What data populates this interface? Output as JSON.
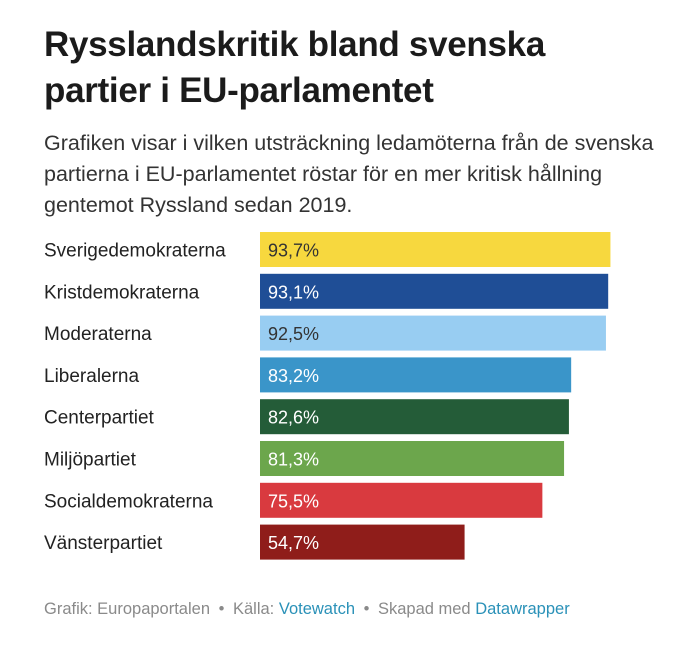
{
  "title": "Rysslandskritik bland svenska partier i EU-parlamentet",
  "subtitle": "Grafiken visar i vilken utsträckning ledamöterna från de svenska partierna i EU-parlamentet röstar för en mer kritisk hållning gentemot Ryssland sedan 2019.",
  "chart_data": {
    "type": "bar",
    "orientation": "horizontal",
    "title": "Rysslandskritik bland svenska partier i EU-parlamentet",
    "xlim": [
      0,
      100
    ],
    "categories": [
      "Sverigedemokraterna",
      "Kristdemokraterna",
      "Moderaterna",
      "Liberalerna",
      "Centerpartiet",
      "Miljöpartiet",
      "Socialdemokraterna",
      "Vänsterpartiet"
    ],
    "values": [
      93.7,
      93.1,
      92.5,
      83.2,
      82.6,
      81.3,
      75.5,
      54.7
    ],
    "value_labels": [
      "93,7%",
      "93,1%",
      "92,5%",
      "83,2%",
      "82,6%",
      "81,3%",
      "75,5%",
      "54,7%"
    ],
    "colors": [
      "#f7d83e",
      "#1f4e96",
      "#98cdf2",
      "#3a95c9",
      "#245c38",
      "#6ca64c",
      "#d93a3f",
      "#8f1d1a"
    ],
    "value_label_colors": [
      "#333333",
      "#ffffff",
      "#333333",
      "#ffffff",
      "#ffffff",
      "#ffffff",
      "#ffffff",
      "#ffffff"
    ],
    "grid": false,
    "legend": "none"
  },
  "footer": {
    "grafik_text": "Grafik: Europaportalen",
    "separator": "•",
    "kalla_label": "Källa:",
    "kalla_link": "Votewatch",
    "skapad_label": "Skapad med",
    "skapad_link": "Datawrapper"
  }
}
